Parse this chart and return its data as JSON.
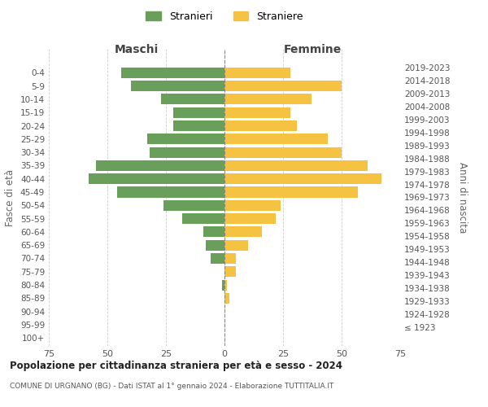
{
  "age_groups": [
    "100+",
    "95-99",
    "90-94",
    "85-89",
    "80-84",
    "75-79",
    "70-74",
    "65-69",
    "60-64",
    "55-59",
    "50-54",
    "45-49",
    "40-44",
    "35-39",
    "30-34",
    "25-29",
    "20-24",
    "15-19",
    "10-14",
    "5-9",
    "0-4"
  ],
  "birth_years": [
    "≤ 1923",
    "1924-1928",
    "1929-1933",
    "1934-1938",
    "1939-1943",
    "1944-1948",
    "1949-1953",
    "1954-1958",
    "1959-1963",
    "1964-1968",
    "1969-1973",
    "1974-1978",
    "1979-1983",
    "1984-1988",
    "1989-1993",
    "1994-1998",
    "1999-2003",
    "2004-2008",
    "2009-2013",
    "2014-2018",
    "2019-2023"
  ],
  "maschi": [
    0,
    0,
    0,
    0,
    1,
    0,
    6,
    8,
    9,
    18,
    26,
    46,
    58,
    55,
    32,
    33,
    22,
    22,
    27,
    40,
    44
  ],
  "femmine": [
    0,
    0,
    0,
    2,
    1,
    5,
    5,
    10,
    16,
    22,
    24,
    57,
    67,
    61,
    50,
    44,
    31,
    28,
    37,
    50,
    28
  ],
  "maschi_color": "#6a9e5b",
  "femmine_color": "#f5c242",
  "background_color": "#ffffff",
  "grid_color": "#cccccc",
  "title": "Popolazione per cittadinanza straniera per età e sesso - 2024",
  "subtitle": "COMUNE DI URGNANO (BG) - Dati ISTAT al 1° gennaio 2024 - Elaborazione TUTTITALIA.IT",
  "xlabel_left": "Maschi",
  "xlabel_right": "Femmine",
  "ylabel_left": "Fasce di età",
  "ylabel_right": "Anni di nascita",
  "legend_maschi": "Stranieri",
  "legend_femmine": "Straniere",
  "xlim": 75,
  "bar_height": 0.8
}
